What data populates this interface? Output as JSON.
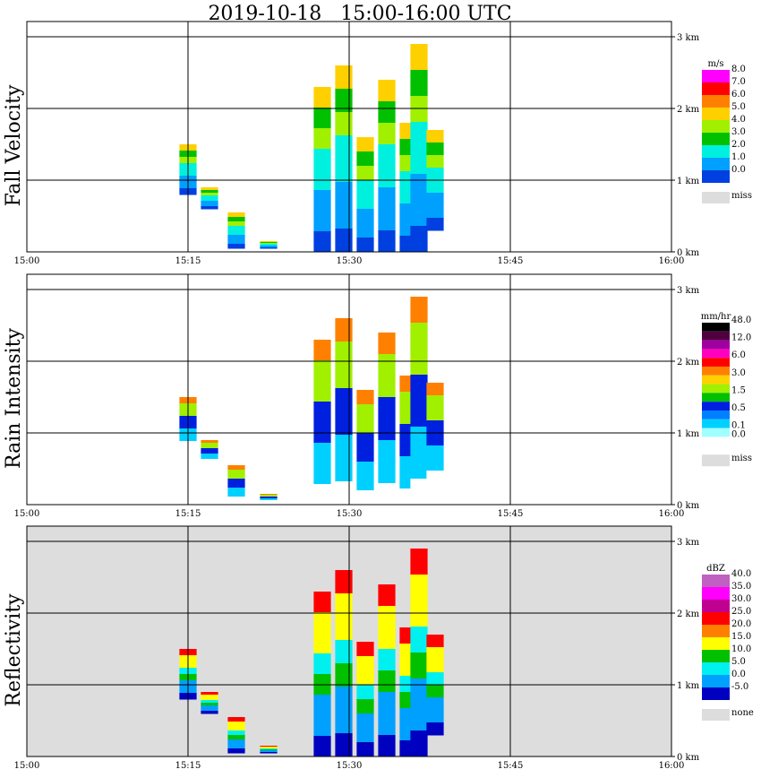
{
  "title": "2019-10-18   15:00-16:00 UTC",
  "x_ticks": [
    "15:00",
    "15:15",
    "15:30",
    "15:45",
    "16:00"
  ],
  "y_ticks": [
    "0 km",
    "1 km",
    "2 km",
    "3 km"
  ],
  "panels": [
    {
      "id": "fall-velocity",
      "ylabel": "Fall Velocity",
      "unit": "m/s",
      "background": "#ffffff",
      "legend": [
        {
          "label": "8.0",
          "color": "#ff00ff"
        },
        {
          "label": "7.0",
          "color": "#ff0000"
        },
        {
          "label": "6.0",
          "color": "#ff8000"
        },
        {
          "label": "5.0",
          "color": "#ffd000"
        },
        {
          "label": "4.0",
          "color": "#a0f000"
        },
        {
          "label": "3.0",
          "color": "#00c000"
        },
        {
          "label": "2.0",
          "color": "#00f0e0"
        },
        {
          "label": "1.0",
          "color": "#00a0ff"
        },
        {
          "label": "0.0",
          "color": "#0040e0"
        }
      ],
      "miss_label": "miss"
    },
    {
      "id": "rain-intensity",
      "ylabel": "Rain Intensity",
      "unit": "mm/hr",
      "background": "#ffffff",
      "legend": [
        {
          "label": "48.0",
          "color": "#000000"
        },
        {
          "label": "",
          "color": "#500040"
        },
        {
          "label": "12.0",
          "color": "#a000a0"
        },
        {
          "label": "",
          "color": "#ff00c0"
        },
        {
          "label": "6.0",
          "color": "#ff0000"
        },
        {
          "label": "",
          "color": "#ff8000"
        },
        {
          "label": "3.0",
          "color": "#ffd000"
        },
        {
          "label": "",
          "color": "#a0f000"
        },
        {
          "label": "1.5",
          "color": "#00c000"
        },
        {
          "label": "",
          "color": "#0020e0"
        },
        {
          "label": "0.5",
          "color": "#0080ff"
        },
        {
          "label": "",
          "color": "#00d0ff"
        },
        {
          "label": "0.1",
          "color": "#a0ffff"
        },
        {
          "label": "0.0",
          "color": "#ffffff"
        }
      ],
      "miss_label": "miss"
    },
    {
      "id": "reflectivity",
      "ylabel": "Reflectivity",
      "unit": "dBZ",
      "background": "#dddddd",
      "legend": [
        {
          "label": "40.0",
          "color": "#c060c0"
        },
        {
          "label": "35.0",
          "color": "#ff00ff"
        },
        {
          "label": "30.0",
          "color": "#c00090"
        },
        {
          "label": "25.0",
          "color": "#ff0000"
        },
        {
          "label": "20.0",
          "color": "#ff8000"
        },
        {
          "label": "15.0",
          "color": "#ffff00"
        },
        {
          "label": "10.0",
          "color": "#00c000"
        },
        {
          "label": "5.0",
          "color": "#00f0f0"
        },
        {
          "label": "0.0",
          "color": "#00a0ff"
        },
        {
          "label": "-5.0",
          "color": "#0000c0"
        }
      ],
      "miss_label": "none"
    }
  ],
  "chart_data": {
    "type": "heatmap",
    "x_range": [
      "15:00",
      "16:00"
    ],
    "y_range_km": [
      0,
      3.1
    ],
    "grid": true,
    "echo_columns": [
      {
        "t_min": 15.0,
        "top_km": 1.5,
        "bottom_km": 0.8
      },
      {
        "t_min": 17.0,
        "top_km": 0.9,
        "bottom_km": 0.6
      },
      {
        "t_min": 19.5,
        "top_km": 0.55,
        "bottom_km": 0.05
      },
      {
        "t_min": 22.5,
        "top_km": 0.15,
        "bottom_km": 0.05
      },
      {
        "t_min": 27.5,
        "top_km": 2.3,
        "bottom_km": 0.0
      },
      {
        "t_min": 29.5,
        "top_km": 2.6,
        "bottom_km": 0.0
      },
      {
        "t_min": 31.5,
        "top_km": 1.6,
        "bottom_km": 0.0
      },
      {
        "t_min": 33.5,
        "top_km": 2.4,
        "bottom_km": 0.0
      },
      {
        "t_min": 35.5,
        "top_km": 1.8,
        "bottom_km": 0.0
      },
      {
        "t_min": 36.5,
        "top_km": 2.9,
        "bottom_km": 0.0
      },
      {
        "t_min": 38.0,
        "top_km": 1.7,
        "bottom_km": 0.3
      }
    ]
  }
}
